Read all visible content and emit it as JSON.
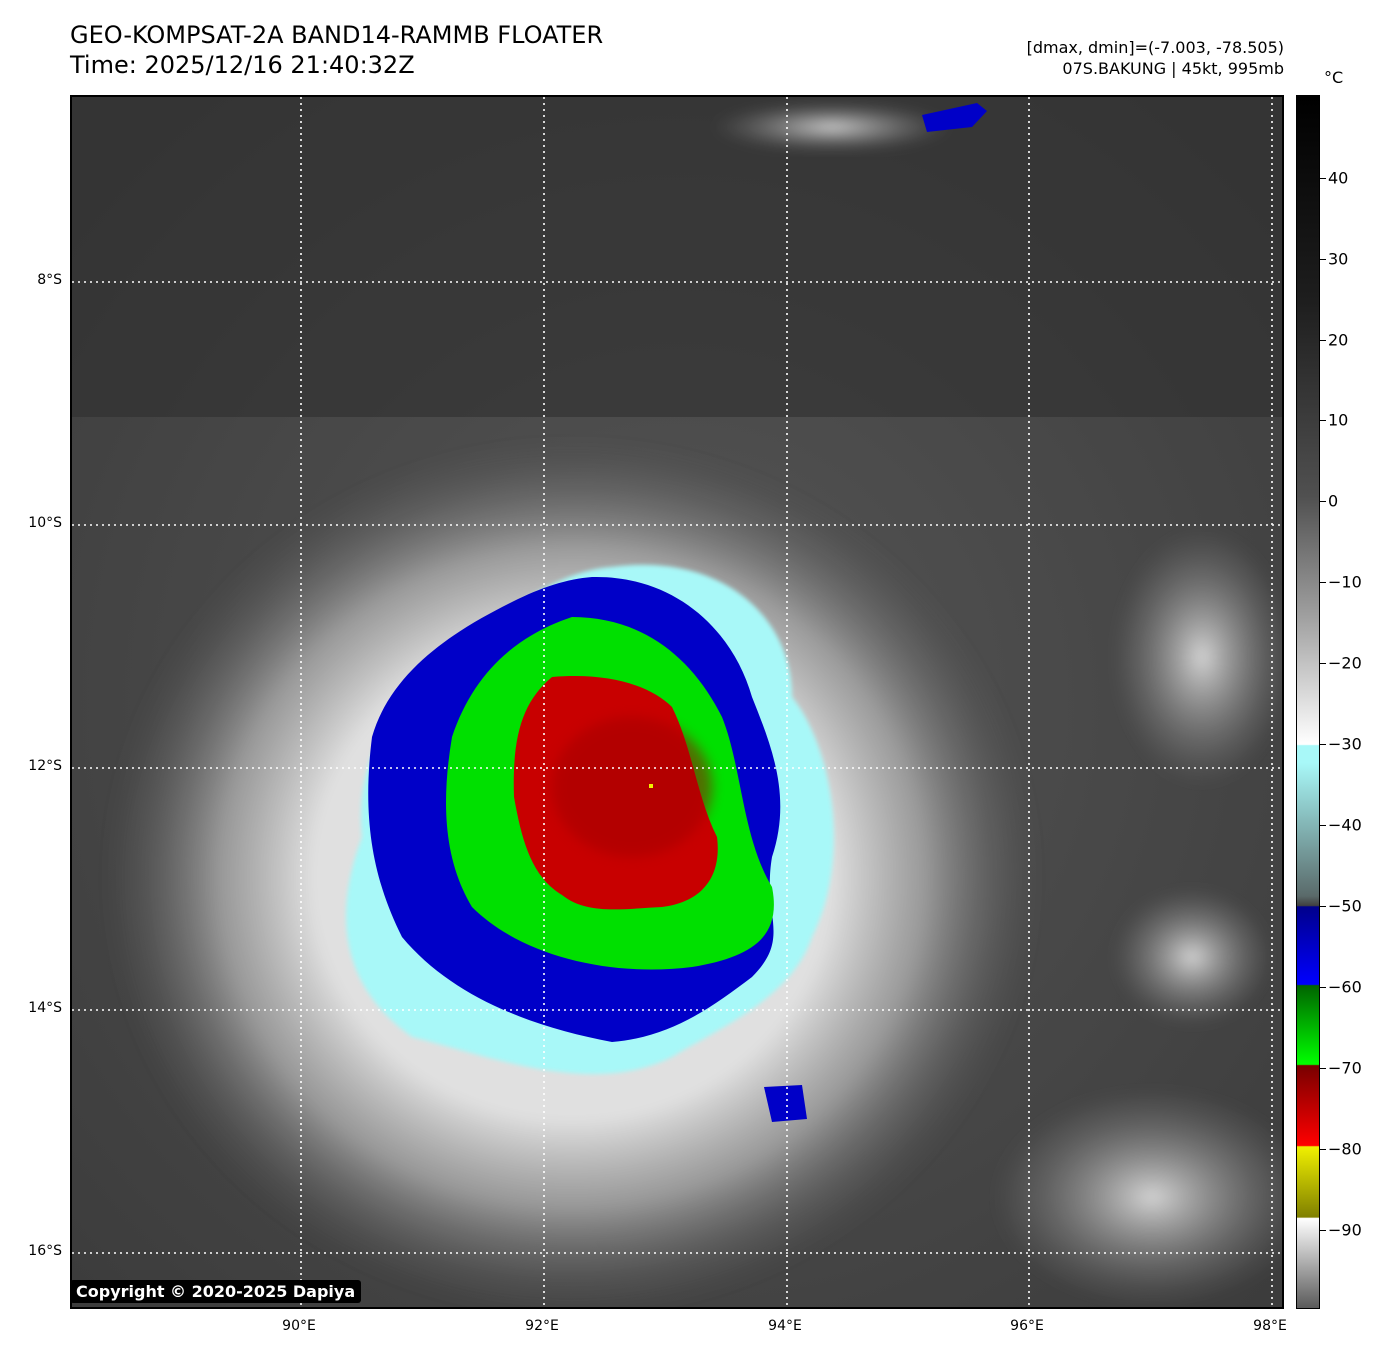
{
  "header": {
    "title_line1": "GEO-KOMPSAT-2A BAND14-RAMMB FLOATER",
    "title_line2": "Time: 2025/12/16 21:40:32Z",
    "range_text": "[dmax, dmin]=(-7.003, -78.505)",
    "storm_text": "07S.BAKUNG | 45kt, 995mb"
  },
  "map": {
    "lat_labels": [
      "8°S",
      "10°S",
      "12°S",
      "14°S",
      "16°S"
    ],
    "lon_labels": [
      "90°E",
      "92°E",
      "94°E",
      "96°E",
      "98°E"
    ]
  },
  "colorbar": {
    "unit": "°C",
    "tick_labels": [
      "40",
      "30",
      "20",
      "10",
      "0",
      "−10",
      "−20",
      "−30",
      "−40",
      "−50",
      "−60",
      "−70",
      "−80",
      "−90"
    ],
    "colors": {
      "warm_high": "#000000",
      "warm_mid": "#6e6e6e",
      "cold_white": "#ffffff",
      "cyan": "#a8f8f8",
      "blue": "#0000c8",
      "green": "#00e000",
      "red": "#c80000",
      "yellow": "#f0f000"
    }
  },
  "footer": {
    "copyright": "Copyright © 2020-2025 Dapiya"
  }
}
